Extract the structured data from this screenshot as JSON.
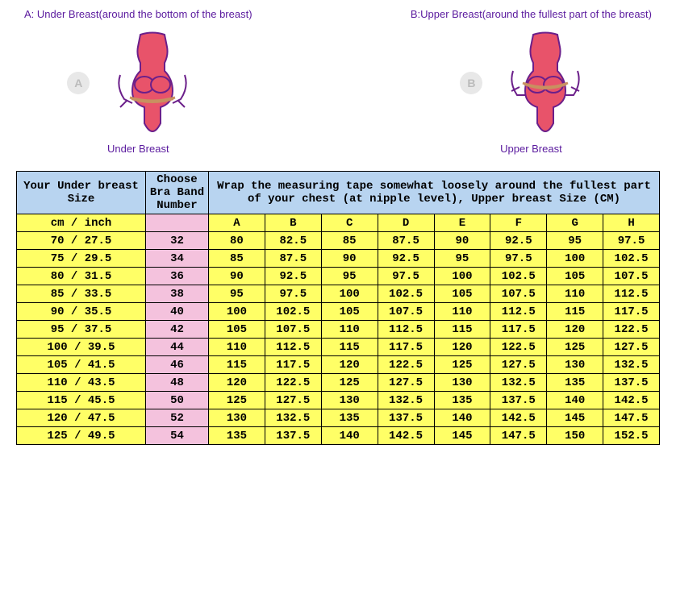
{
  "diagrams": {
    "a": {
      "title": "A: Under Breast(around the bottom of the breast)",
      "badge": "A",
      "caption": "Under Breast",
      "fill": "#e8536a",
      "stroke": "#6b1f8a"
    },
    "b": {
      "title": "B:Upper Breast(around the fullest part of the breast)",
      "badge": "B",
      "caption": "Upper Breast",
      "fill": "#e8536a",
      "stroke": "#6b1f8a"
    }
  },
  "table": {
    "header": {
      "col1": "Your Under breast Size",
      "col2": "Choose Bra Band Number",
      "col3": "Wrap the measuring tape somewhat loosely around the fullest part of your chest (at nipple level), Upper breast Size (CM)"
    },
    "subheader": {
      "under_label": "cm  / inch",
      "cups": [
        "A",
        "B",
        "C",
        "D",
        "E",
        "F",
        "G",
        "H"
      ]
    },
    "rows": [
      {
        "under": "70  / 27.5",
        "band": "32",
        "vals": [
          "80",
          "82.5",
          "85",
          "87.5",
          "90",
          "92.5",
          "95",
          "97.5"
        ]
      },
      {
        "under": "75  / 29.5",
        "band": "34",
        "vals": [
          "85",
          "87.5",
          "90",
          "92.5",
          "95",
          "97.5",
          "100",
          "102.5"
        ]
      },
      {
        "under": "80  / 31.5",
        "band": "36",
        "vals": [
          "90",
          "92.5",
          "95",
          "97.5",
          "100",
          "102.5",
          "105",
          "107.5"
        ]
      },
      {
        "under": "85  / 33.5",
        "band": "38",
        "vals": [
          "95",
          "97.5",
          "100",
          "102.5",
          "105",
          "107.5",
          "110",
          "112.5"
        ]
      },
      {
        "under": "90  / 35.5",
        "band": "40",
        "vals": [
          "100",
          "102.5",
          "105",
          "107.5",
          "110",
          "112.5",
          "115",
          "117.5"
        ]
      },
      {
        "under": "95  / 37.5",
        "band": "42",
        "vals": [
          "105",
          "107.5",
          "110",
          "112.5",
          "115",
          "117.5",
          "120",
          "122.5"
        ]
      },
      {
        "under": "100 / 39.5",
        "band": "44",
        "vals": [
          "110",
          "112.5",
          "115",
          "117.5",
          "120",
          "122.5",
          "125",
          "127.5"
        ]
      },
      {
        "under": "105 / 41.5",
        "band": "46",
        "vals": [
          "115",
          "117.5",
          "120",
          "122.5",
          "125",
          "127.5",
          "130",
          "132.5"
        ]
      },
      {
        "under": "110 / 43.5",
        "band": "48",
        "vals": [
          "120",
          "122.5",
          "125",
          "127.5",
          "130",
          "132.5",
          "135",
          "137.5"
        ]
      },
      {
        "under": "115 / 45.5",
        "band": "50",
        "vals": [
          "125",
          "127.5",
          "130",
          "132.5",
          "135",
          "137.5",
          "140",
          "142.5"
        ]
      },
      {
        "under": "120 / 47.5",
        "band": "52",
        "vals": [
          "130",
          "132.5",
          "135",
          "137.5",
          "140",
          "142.5",
          "145",
          "147.5"
        ]
      },
      {
        "under": "125 / 49.5",
        "band": "54",
        "vals": [
          "135",
          "137.5",
          "140",
          "142.5",
          "145",
          "147.5",
          "150",
          "152.5"
        ]
      }
    ]
  },
  "colors": {
    "header_bg": "#b8d4f0",
    "row_bg": "#ffff66",
    "band_bg": "#f4c2dd",
    "border": "#000000",
    "title_text": "#5a1a9e"
  }
}
